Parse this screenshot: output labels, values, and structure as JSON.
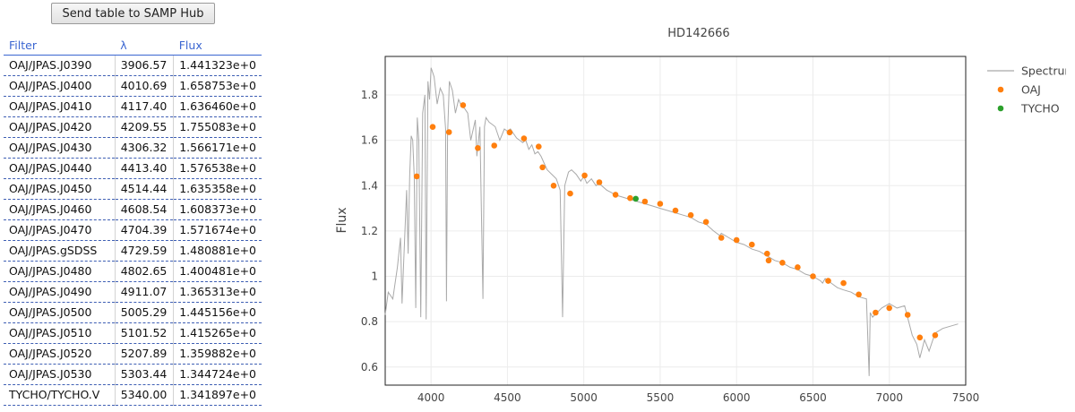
{
  "samp_button": "Send table to SAMP Hub",
  "table": {
    "headers": [
      "Filter",
      "λ",
      "Flux"
    ],
    "rows": [
      [
        "OAJ/JPAS.J0390",
        "3906.57",
        "1.441323e+0"
      ],
      [
        "OAJ/JPAS.J0400",
        "4010.69",
        "1.658753e+0"
      ],
      [
        "OAJ/JPAS.J0410",
        "4117.40",
        "1.636460e+0"
      ],
      [
        "OAJ/JPAS.J0420",
        "4209.55",
        "1.755083e+0"
      ],
      [
        "OAJ/JPAS.J0430",
        "4306.32",
        "1.566171e+0"
      ],
      [
        "OAJ/JPAS.J0440",
        "4413.40",
        "1.576538e+0"
      ],
      [
        "OAJ/JPAS.J0450",
        "4514.44",
        "1.635358e+0"
      ],
      [
        "OAJ/JPAS.J0460",
        "4608.54",
        "1.608373e+0"
      ],
      [
        "OAJ/JPAS.J0470",
        "4704.39",
        "1.571674e+0"
      ],
      [
        "OAJ/JPAS.gSDSS",
        "4729.59",
        "1.480881e+0"
      ],
      [
        "OAJ/JPAS.J0480",
        "4802.65",
        "1.400481e+0"
      ],
      [
        "OAJ/JPAS.J0490",
        "4911.07",
        "1.365313e+0"
      ],
      [
        "OAJ/JPAS.J0500",
        "5005.29",
        "1.445156e+0"
      ],
      [
        "OAJ/JPAS.J0510",
        "5101.52",
        "1.415265e+0"
      ],
      [
        "OAJ/JPAS.J0520",
        "5207.89",
        "1.359882e+0"
      ],
      [
        "OAJ/JPAS.J0530",
        "5303.44",
        "1.344724e+0"
      ],
      [
        "TYCHO/TYCHO.V",
        "5340.00",
        "1.341897e+0"
      ]
    ]
  },
  "chart_data": {
    "type": "scatter",
    "title": "HD142666",
    "xlabel": "",
    "ylabel": "Flux",
    "xlim": [
      3700,
      7500
    ],
    "ylim": [
      0.52,
      1.97
    ],
    "xticks": [
      4000,
      4500,
      5000,
      5500,
      6000,
      6500,
      7000,
      7500
    ],
    "yticks": [
      0.6,
      0.8,
      1,
      1.2,
      1.4,
      1.6,
      1.8
    ],
    "grid": true,
    "legend": "top-right",
    "series": [
      {
        "name": "Spectrum",
        "kind": "line",
        "color": "#a9a9a9",
        "x": [
          3700,
          3720,
          3750,
          3780,
          3800,
          3810,
          3820,
          3840,
          3850,
          3860,
          3870,
          3880,
          3890,
          3900,
          3910,
          3920,
          3933,
          3945,
          3960,
          3968,
          3980,
          3990,
          4000,
          4010,
          4020,
          4030,
          4040,
          4060,
          4080,
          4095,
          4101,
          4108,
          4120,
          4140,
          4160,
          4180,
          4200,
          4220,
          4240,
          4260,
          4290,
          4300,
          4320,
          4340,
          4350,
          4360,
          4380,
          4400,
          4420,
          4450,
          4480,
          4500,
          4520,
          4540,
          4560,
          4580,
          4600,
          4620,
          4640,
          4660,
          4680,
          4700,
          4720,
          4740,
          4760,
          4790,
          4820,
          4845,
          4861,
          4875,
          4900,
          4920,
          4950,
          4980,
          5000,
          5020,
          5050,
          5080,
          5100,
          5150,
          5180,
          5200,
          5250,
          5300,
          5350,
          5400,
          5450,
          5500,
          5550,
          5600,
          5650,
          5700,
          5750,
          5800,
          5850,
          5890,
          5900,
          5950,
          6000,
          6050,
          6100,
          6150,
          6200,
          6250,
          6300,
          6350,
          6400,
          6450,
          6500,
          6550,
          6563,
          6580,
          6620,
          6660,
          6700,
          6750,
          6800,
          6850,
          6868,
          6875,
          6890,
          6920,
          6950,
          7000,
          7050,
          7100,
          7150,
          7180,
          7200,
          7230,
          7260,
          7300,
          7350,
          7400,
          7450
        ],
        "y": [
          0.83,
          0.93,
          0.9,
          1.04,
          1.17,
          0.88,
          1.05,
          1.38,
          1.1,
          1.44,
          1.62,
          1.6,
          1.44,
          0.86,
          1.7,
          1.6,
          0.82,
          1.72,
          1.8,
          0.81,
          1.86,
          1.78,
          1.92,
          1.9,
          1.88,
          1.82,
          1.76,
          1.83,
          1.8,
          1.65,
          0.89,
          1.62,
          1.86,
          1.82,
          1.72,
          1.78,
          1.75,
          1.74,
          1.72,
          1.6,
          1.69,
          1.53,
          1.66,
          0.9,
          1.66,
          1.7,
          1.68,
          1.67,
          1.66,
          1.6,
          1.65,
          1.64,
          1.65,
          1.63,
          1.61,
          1.6,
          1.59,
          1.6,
          1.56,
          1.58,
          1.54,
          1.55,
          1.53,
          1.5,
          1.47,
          1.45,
          1.43,
          1.38,
          0.82,
          1.4,
          1.46,
          1.47,
          1.45,
          1.42,
          1.44,
          1.41,
          1.43,
          1.4,
          1.41,
          1.38,
          1.37,
          1.36,
          1.35,
          1.34,
          1.33,
          1.32,
          1.31,
          1.3,
          1.29,
          1.28,
          1.27,
          1.26,
          1.24,
          1.23,
          1.2,
          1.18,
          1.19,
          1.17,
          1.15,
          1.14,
          1.12,
          1.11,
          1.09,
          1.07,
          1.06,
          1.04,
          1.03,
          1.01,
          1.0,
          0.98,
          0.97,
          0.99,
          0.97,
          0.95,
          0.94,
          0.93,
          0.91,
          0.9,
          0.56,
          0.84,
          0.82,
          0.84,
          0.86,
          0.88,
          0.86,
          0.87,
          0.74,
          0.7,
          0.64,
          0.72,
          0.67,
          0.75,
          0.77,
          0.78,
          0.79
        ]
      },
      {
        "name": "OAJ",
        "kind": "points",
        "color": "#ff7f0e",
        "x": [
          3906.57,
          4010.69,
          4117.4,
          4209.55,
          4306.32,
          4413.4,
          4514.44,
          4608.54,
          4704.39,
          4729.59,
          4802.65,
          4911.07,
          5005.29,
          5101.52,
          5207.89,
          5303.44,
          5400,
          5500,
          5600,
          5700,
          5800,
          5900,
          6000,
          6100,
          6200,
          6210,
          6300,
          6400,
          6500,
          6600,
          6700,
          6800,
          6910,
          7000,
          7120,
          7200,
          7300
        ],
        "y": [
          1.441,
          1.659,
          1.636,
          1.755,
          1.566,
          1.577,
          1.635,
          1.608,
          1.572,
          1.481,
          1.4,
          1.365,
          1.445,
          1.415,
          1.36,
          1.345,
          1.33,
          1.32,
          1.29,
          1.27,
          1.24,
          1.17,
          1.16,
          1.14,
          1.1,
          1.07,
          1.06,
          1.04,
          1.0,
          0.98,
          0.97,
          0.92,
          0.84,
          0.86,
          0.83,
          0.73,
          0.74
        ]
      },
      {
        "name": "TYCHO",
        "kind": "points",
        "color": "#2ca02c",
        "x": [
          5340.0
        ],
        "y": [
          1.342
        ]
      }
    ]
  }
}
